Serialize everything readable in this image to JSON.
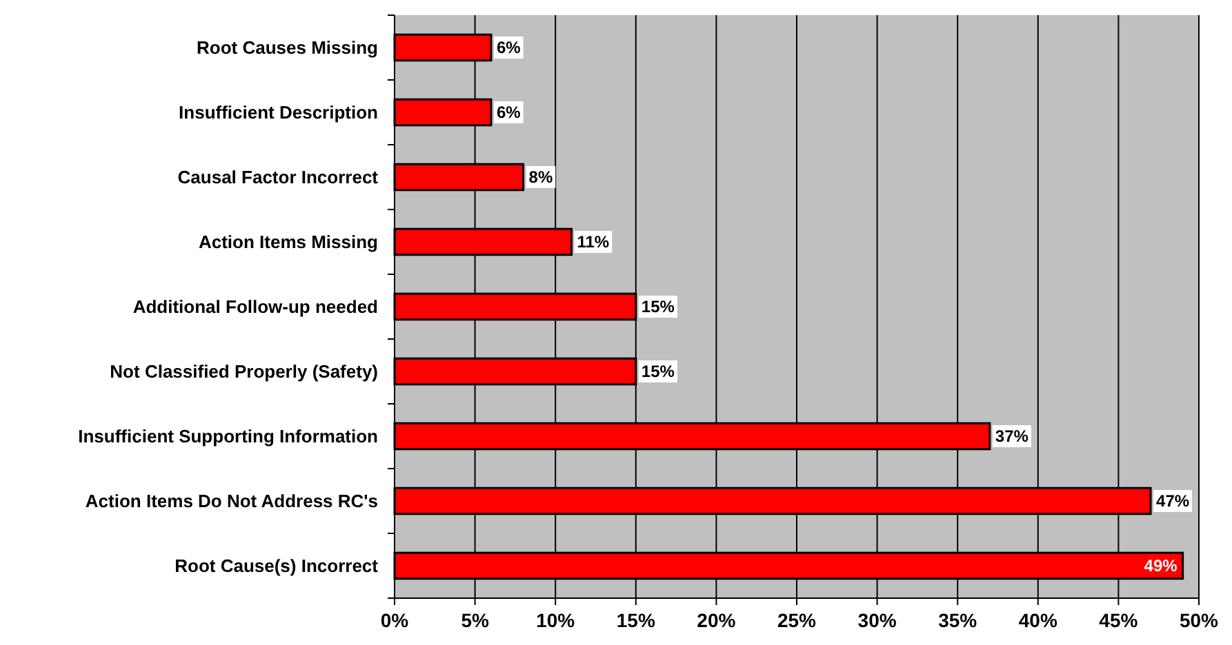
{
  "chart_data": {
    "type": "bar",
    "orientation": "horizontal",
    "categories": [
      "Root Causes Missing",
      "Insufficient Description",
      "Causal Factor Incorrect",
      "Action Items Missing",
      "Additional Follow-up needed",
      "Not Classified Properly (Safety)",
      "Insufficient Supporting Information",
      "Action Items Do Not Address RC's",
      "Root Cause(s) Incorrect"
    ],
    "values": [
      6,
      6,
      8,
      11,
      15,
      15,
      37,
      47,
      49
    ],
    "value_labels": [
      "6%",
      "6%",
      "8%",
      "11%",
      "15%",
      "15%",
      "37%",
      "47%",
      "49%"
    ],
    "color": "#ff0000",
    "xlim": [
      0,
      50
    ],
    "xticks": [
      {
        "value": 0,
        "label": "0%"
      },
      {
        "value": 5,
        "label": "5%"
      },
      {
        "value": 10,
        "label": "10%"
      },
      {
        "value": 15,
        "label": "15%"
      },
      {
        "value": 20,
        "label": "20%"
      },
      {
        "value": 25,
        "label": "25%"
      },
      {
        "value": 30,
        "label": "30%"
      },
      {
        "value": 35,
        "label": "35%"
      },
      {
        "value": 40,
        "label": "40%"
      },
      {
        "value": 45,
        "label": "45%"
      },
      {
        "value": 50,
        "label": "50%"
      }
    ],
    "grid": "x"
  }
}
